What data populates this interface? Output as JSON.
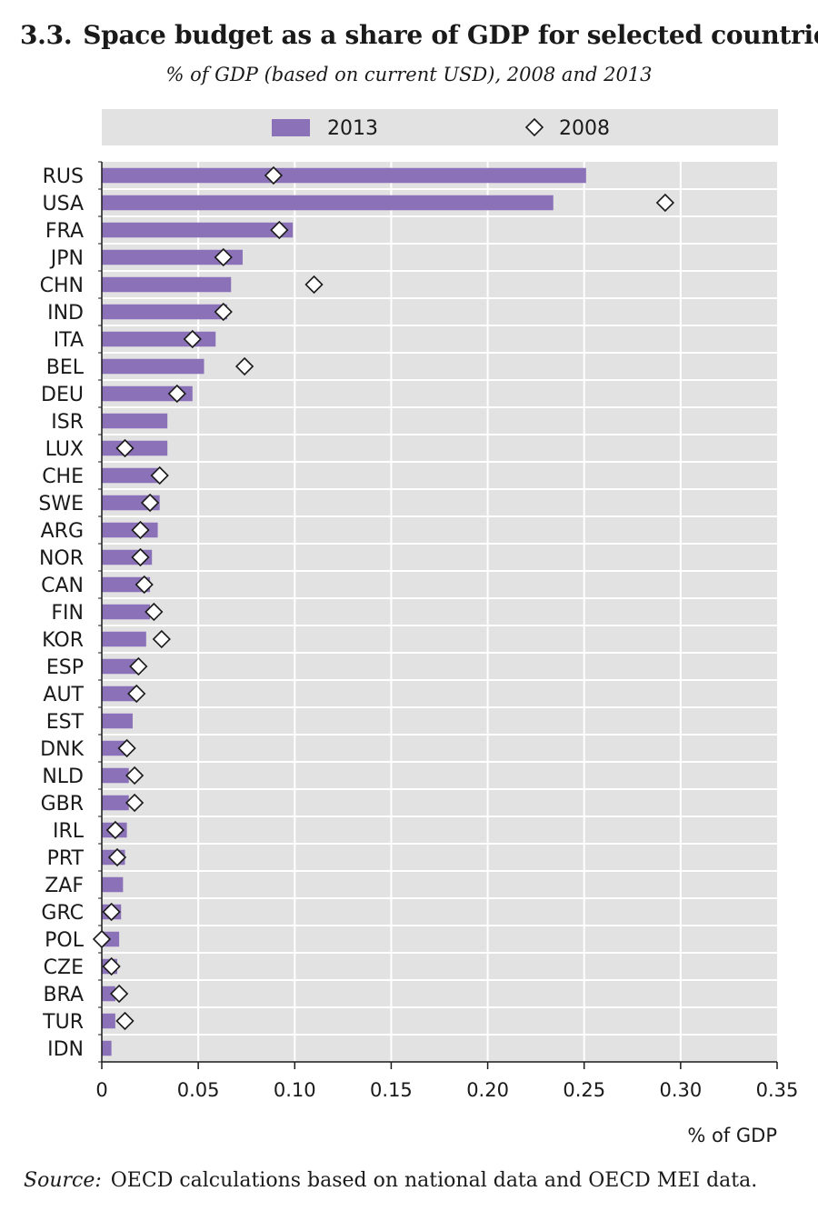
{
  "figure": {
    "number": "3.3.",
    "title": "Space budget as a share of GDP for selected countries",
    "subtitle": "% of GDP (based on current USD), 2008 and 2013",
    "source_label": "Source:",
    "source_text": "OECD calculations based on national data and OECD MEI data."
  },
  "colors": {
    "bar_2013": "#8b72b8",
    "plot_background": "#e2e2e2",
    "legend_background": "#e2e2e2",
    "marker_fill": "#ffffff",
    "marker_stroke": "#1a1a1a"
  },
  "chart_data": {
    "type": "bar",
    "orientation": "horizontal",
    "xlabel": "% of GDP",
    "xlim": [
      0,
      0.35
    ],
    "xticks": [
      0,
      0.05,
      0.1,
      0.15,
      0.2,
      0.25,
      0.3,
      0.35
    ],
    "xtick_labels": [
      "0",
      "0.05",
      "0.10",
      "0.15",
      "0.20",
      "0.25",
      "0.30",
      "0.35"
    ],
    "grid": true,
    "legend_position": "top",
    "categories": [
      "RUS",
      "USA",
      "FRA",
      "JPN",
      "CHN",
      "IND",
      "ITA",
      "BEL",
      "DEU",
      "ISR",
      "LUX",
      "CHE",
      "SWE",
      "ARG",
      "NOR",
      "CAN",
      "FIN",
      "KOR",
      "ESP",
      "AUT",
      "EST",
      "DNK",
      "NLD",
      "GBR",
      "IRL",
      "PRT",
      "ZAF",
      "GRC",
      "POL",
      "CZE",
      "BRA",
      "TUR",
      "IDN"
    ],
    "series": [
      {
        "name": "2013",
        "kind": "bar",
        "values": [
          0.251,
          0.234,
          0.099,
          0.073,
          0.067,
          0.065,
          0.059,
          0.053,
          0.047,
          0.034,
          0.034,
          0.031,
          0.03,
          0.029,
          0.026,
          0.025,
          0.025,
          0.023,
          0.018,
          0.018,
          0.016,
          0.014,
          0.014,
          0.014,
          0.013,
          0.012,
          0.011,
          0.01,
          0.009,
          0.008,
          0.007,
          0.007,
          0.005
        ]
      },
      {
        "name": "2008",
        "kind": "diamond-marker",
        "values": [
          0.089,
          0.292,
          0.092,
          0.063,
          0.11,
          0.063,
          0.047,
          0.074,
          0.039,
          null,
          0.012,
          0.03,
          0.025,
          0.02,
          0.02,
          0.022,
          0.027,
          0.031,
          0.019,
          0.018,
          null,
          0.013,
          0.017,
          0.017,
          0.007,
          0.008,
          null,
          0.005,
          0.0,
          0.005,
          0.009,
          0.012,
          null
        ]
      }
    ]
  }
}
